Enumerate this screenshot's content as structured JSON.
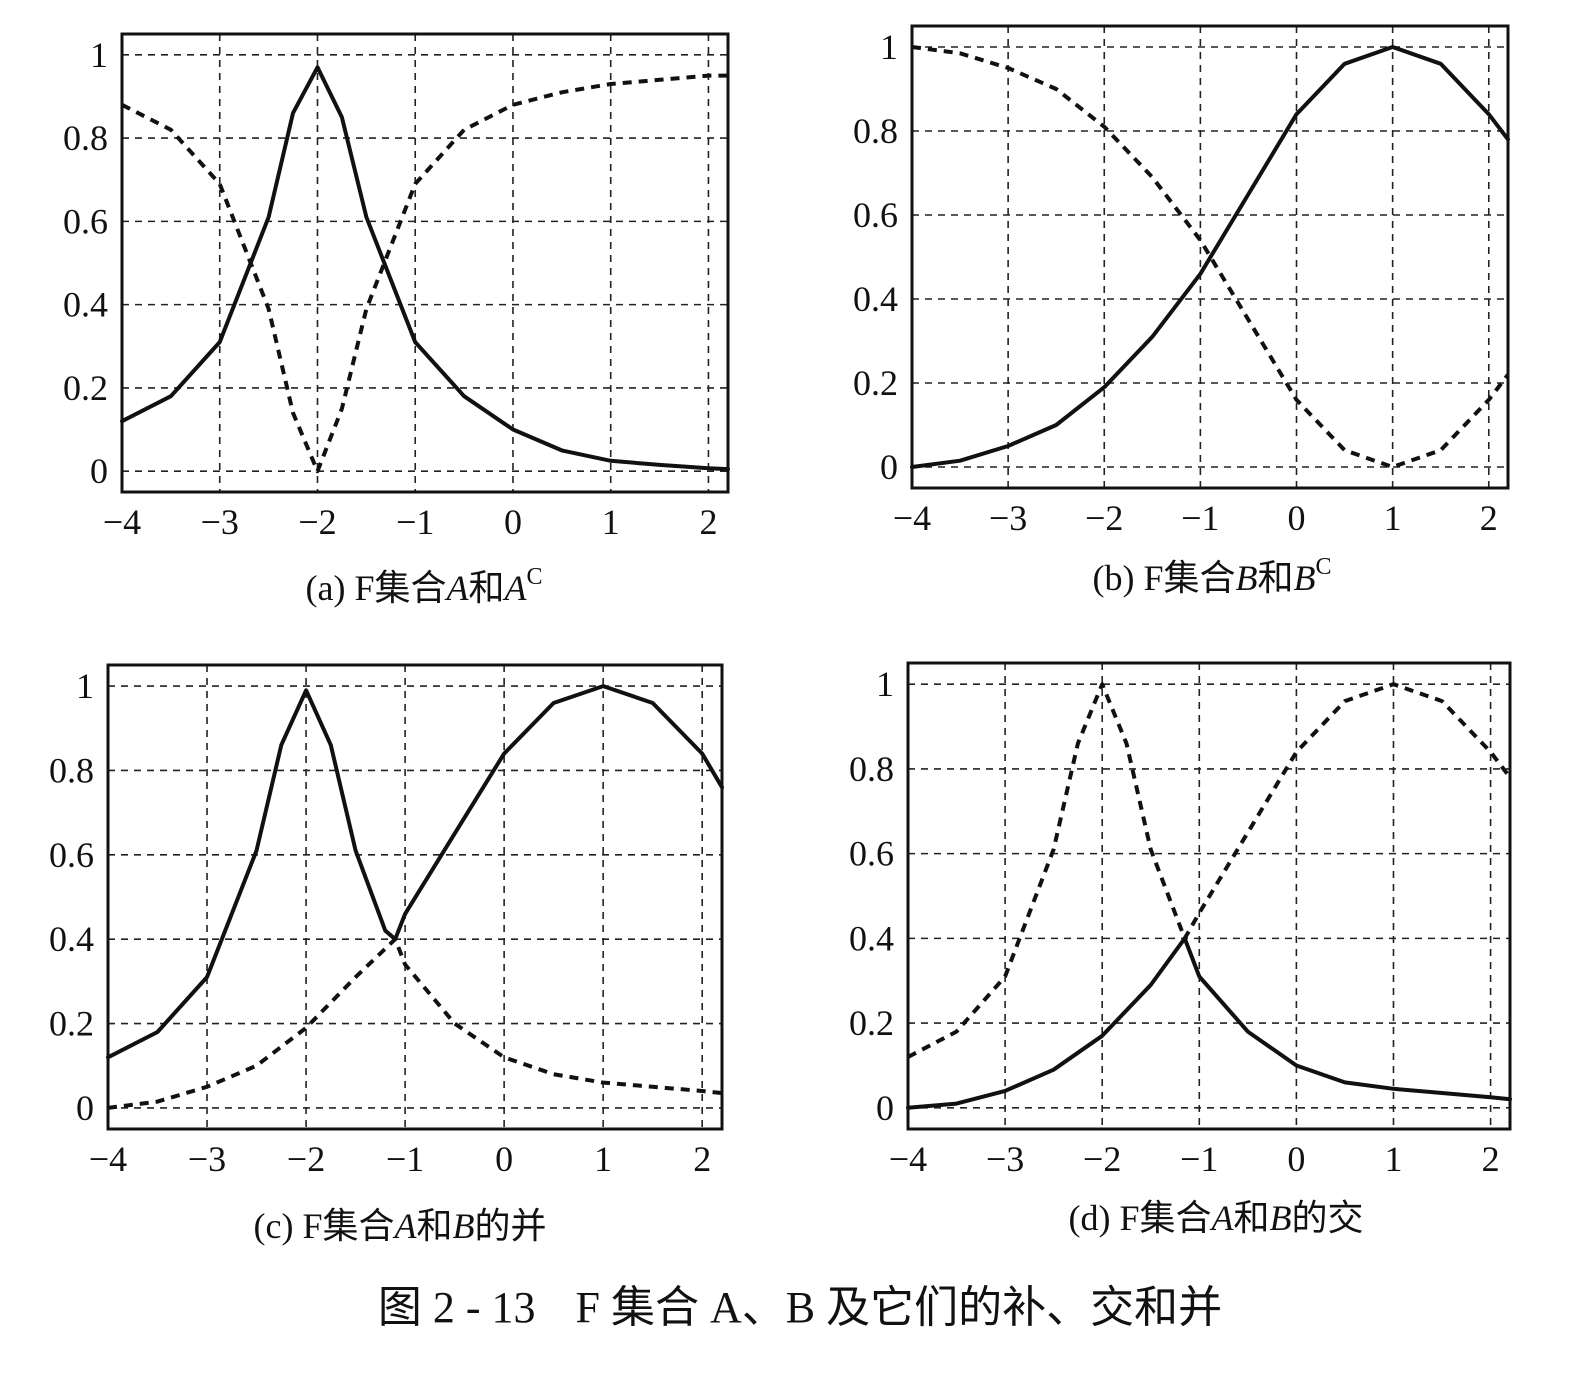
{
  "figure": {
    "caption_prefix": "图 2 - 13",
    "caption_text": "F 集合 A、B 及它们的补、交和并"
  },
  "chart_data": [
    {
      "type": "line",
      "caption_label": "(a) F集合",
      "caption_a": "A",
      "caption_mid": "和",
      "caption_b": "A",
      "caption_sup": "C",
      "x_ticks": [
        -4,
        -3,
        -2,
        -1,
        0,
        1,
        2
      ],
      "y_ticks": [
        0,
        0.2,
        0.4,
        0.6,
        0.8,
        1
      ],
      "xlim": [
        -4,
        2.2
      ],
      "ylim": [
        -0.05,
        1.05
      ],
      "grid": true,
      "series": [
        {
          "style": "solid",
          "x": [
            -4,
            -3.5,
            -3,
            -2.5,
            -2.25,
            -2,
            -1.75,
            -1.5,
            -1,
            -0.5,
            0,
            0.5,
            1,
            1.5,
            2,
            2.2
          ],
          "y": [
            0.12,
            0.18,
            0.31,
            0.61,
            0.86,
            0.97,
            0.85,
            0.61,
            0.31,
            0.18,
            0.1,
            0.05,
            0.025,
            0.015,
            0.007,
            0.005
          ]
        },
        {
          "style": "dashed",
          "x": [
            -4,
            -3.5,
            -3,
            -2.5,
            -2.25,
            -2,
            -1.75,
            -1.5,
            -1,
            -0.5,
            0,
            0.5,
            1,
            1.5,
            2,
            2.2
          ],
          "y": [
            0.88,
            0.82,
            0.69,
            0.39,
            0.14,
            0.0,
            0.15,
            0.39,
            0.69,
            0.82,
            0.88,
            0.91,
            0.93,
            0.94,
            0.95,
            0.95
          ]
        }
      ]
    },
    {
      "type": "line",
      "caption_label": "(b) F集合",
      "caption_a": "B",
      "caption_mid": "和",
      "caption_b": "B",
      "caption_sup": "C",
      "x_ticks": [
        -4,
        -3,
        -2,
        -1,
        0,
        1,
        2
      ],
      "y_ticks": [
        0,
        0.2,
        0.4,
        0.6,
        0.8,
        1
      ],
      "xlim": [
        -4,
        2.2
      ],
      "ylim": [
        -0.05,
        1.05
      ],
      "grid": true,
      "series": [
        {
          "style": "solid",
          "x": [
            -4,
            -3.5,
            -3,
            -2.5,
            -2,
            -1.5,
            -1,
            -0.5,
            0,
            0.5,
            1,
            1.5,
            2,
            2.2
          ],
          "y": [
            0.0,
            0.015,
            0.05,
            0.1,
            0.19,
            0.31,
            0.46,
            0.65,
            0.84,
            0.96,
            1.0,
            0.96,
            0.84,
            0.78
          ]
        },
        {
          "style": "dashed",
          "x": [
            -4,
            -3.5,
            -3,
            -2.5,
            -2,
            -1.5,
            -1,
            -0.5,
            0,
            0.5,
            1,
            1.5,
            2,
            2.2
          ],
          "y": [
            1.0,
            0.985,
            0.95,
            0.9,
            0.81,
            0.69,
            0.54,
            0.35,
            0.16,
            0.04,
            0.0,
            0.04,
            0.16,
            0.22
          ]
        }
      ]
    },
    {
      "type": "line",
      "caption_label": "(c) F集合",
      "caption_a": "A",
      "caption_mid": "和",
      "caption_b": "B",
      "caption_suffix": "的并",
      "x_ticks": [
        -4,
        -3,
        -2,
        -1,
        0,
        1,
        2
      ],
      "y_ticks": [
        0,
        0.2,
        0.4,
        0.6,
        0.8,
        1
      ],
      "xlim": [
        -4,
        2.2
      ],
      "ylim": [
        -0.05,
        1.05
      ],
      "grid": true,
      "series": [
        {
          "style": "solid",
          "x": [
            -4,
            -3.5,
            -3,
            -2.5,
            -2.25,
            -2,
            -1.75,
            -1.5,
            -1.2,
            -1.1,
            -1,
            -0.5,
            0,
            0.5,
            1,
            1.5,
            2,
            2.2
          ],
          "y": [
            0.12,
            0.18,
            0.31,
            0.61,
            0.86,
            0.99,
            0.86,
            0.61,
            0.42,
            0.4,
            0.46,
            0.65,
            0.84,
            0.96,
            1.0,
            0.96,
            0.84,
            0.76
          ]
        },
        {
          "style": "dashed",
          "x": [
            -4,
            -3.5,
            -3,
            -2.5,
            -2,
            -1.5,
            -1.1,
            -1,
            -0.5,
            0,
            0.5,
            1,
            1.5,
            2,
            2.2
          ],
          "y": [
            0.0,
            0.015,
            0.05,
            0.1,
            0.19,
            0.31,
            0.4,
            0.34,
            0.2,
            0.12,
            0.08,
            0.06,
            0.05,
            0.04,
            0.035
          ]
        }
      ]
    },
    {
      "type": "line",
      "caption_label": "(d) F集合",
      "caption_a": "A",
      "caption_mid": "和",
      "caption_b": "B",
      "caption_suffix": "的交",
      "x_ticks": [
        -4,
        -3,
        -2,
        -1,
        0,
        1,
        2
      ],
      "y_ticks": [
        0,
        0.2,
        0.4,
        0.6,
        0.8,
        1
      ],
      "xlim": [
        -4,
        2.2
      ],
      "ylim": [
        -0.05,
        1.05
      ],
      "grid": true,
      "series": [
        {
          "style": "solid",
          "x": [
            -4,
            -3.5,
            -3,
            -2.5,
            -2,
            -1.5,
            -1.15,
            -1,
            -0.5,
            0,
            0.5,
            1,
            1.5,
            2,
            2.2
          ],
          "y": [
            0.0,
            0.01,
            0.04,
            0.09,
            0.17,
            0.29,
            0.4,
            0.31,
            0.18,
            0.1,
            0.06,
            0.045,
            0.035,
            0.025,
            0.02
          ]
        },
        {
          "style": "dashed",
          "x": [
            -4,
            -3.5,
            -3,
            -2.5,
            -2.25,
            -2,
            -1.75,
            -1.5,
            -1.15,
            -1,
            -0.5,
            0,
            0.5,
            1,
            1.5,
            2,
            2.2
          ],
          "y": [
            0.12,
            0.18,
            0.31,
            0.61,
            0.86,
            1.0,
            0.86,
            0.61,
            0.4,
            0.46,
            0.65,
            0.84,
            0.96,
            1.0,
            0.96,
            0.84,
            0.78
          ]
        }
      ]
    }
  ]
}
